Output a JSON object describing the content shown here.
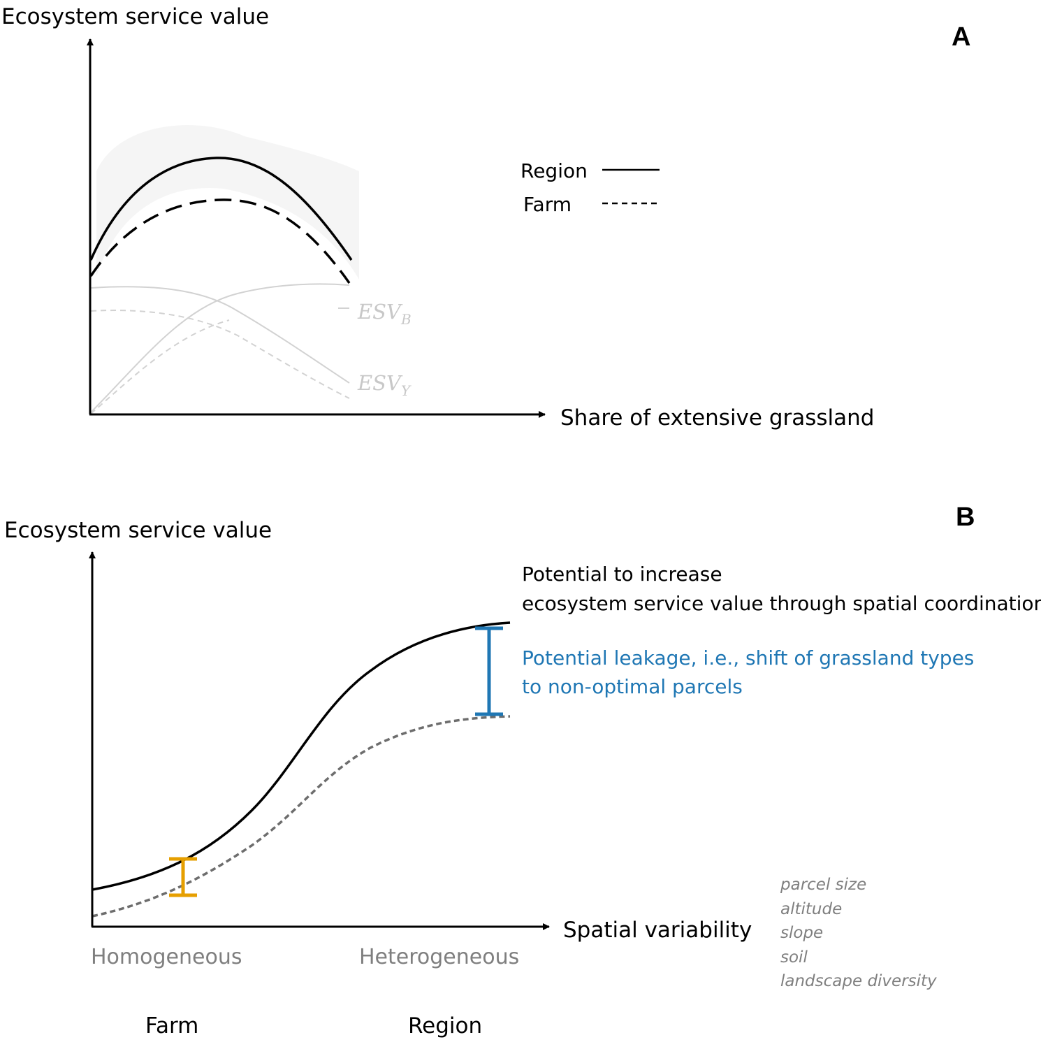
{
  "panel_a": {
    "letter": "A",
    "y_axis_title": "Ecosystem service value",
    "x_axis_title": "Share of extensive grassland",
    "legend": [
      {
        "label": "Region",
        "style": "solid"
      },
      {
        "label": "Farm",
        "style": "dashed"
      }
    ],
    "component_labels": [
      {
        "base": "ESV",
        "sub": "B"
      },
      {
        "base": "ESV",
        "sub": "Y"
      }
    ]
  },
  "panel_b": {
    "letter": "B",
    "y_axis_title": "Ecosystem service value",
    "x_axis_title": "Spatial variability",
    "x_ends": {
      "left": "Homogeneous",
      "right": "Heterogeneous"
    },
    "scale_labels": {
      "left": "Farm",
      "right": "Region"
    },
    "annotation_black": [
      "Potential to increase",
      "ecosystem service value through spatial coordination"
    ],
    "annotation_blue": [
      "Potential leakage, i.e., shift of grassland types",
      "to non-optimal parcels"
    ],
    "factors": [
      "parcel size",
      "altitude",
      "slope",
      "soil",
      "landscape diversity"
    ]
  },
  "colors": {
    "region_line": "#000000",
    "farm_line_a": "#000000",
    "farm_line_b": "#6d6d6d",
    "components": "#d2d2d2",
    "band": "#f5f5f5",
    "leakage_blue": "#1f77b4",
    "farm_gap_orange": "#e69f00",
    "grey_text": "#7f7f7f"
  }
}
